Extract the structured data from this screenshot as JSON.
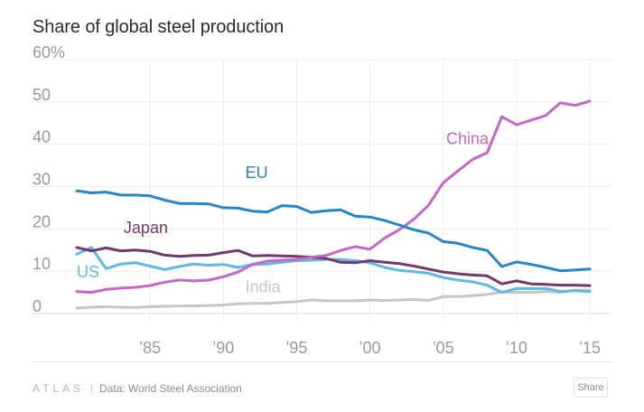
{
  "title": "Share of global steel production",
  "footer": {
    "logo": "ATLAS",
    "divider": "|",
    "source": "Data: World Steel Association",
    "share_label": "Share"
  },
  "chart_data": {
    "type": "line",
    "title": "Share of global steel production",
    "xlabel": "",
    "ylabel": "",
    "ylim": [
      0,
      60
    ],
    "xlim": [
      1980,
      2015
    ],
    "y_ticks": [
      {
        "value": 0,
        "label": "0"
      },
      {
        "value": 10,
        "label": "10"
      },
      {
        "value": 20,
        "label": "20"
      },
      {
        "value": 30,
        "label": "30"
      },
      {
        "value": 40,
        "label": "40"
      },
      {
        "value": 50,
        "label": "50"
      },
      {
        "value": 60,
        "label": "60%"
      }
    ],
    "x_ticks": [
      {
        "value": 1985,
        "label": "’85"
      },
      {
        "value": 1990,
        "label": "’90"
      },
      {
        "value": 1995,
        "label": "’95"
      },
      {
        "value": 2000,
        "label": "’00"
      },
      {
        "value": 2005,
        "label": "’05"
      },
      {
        "value": 2010,
        "label": "’10"
      },
      {
        "value": 2015,
        "label": "’15"
      }
    ],
    "grid": true,
    "x": [
      1980,
      1981,
      1982,
      1983,
      1984,
      1985,
      1986,
      1987,
      1988,
      1989,
      1990,
      1991,
      1992,
      1993,
      1994,
      1995,
      1996,
      1997,
      1998,
      1999,
      2000,
      2001,
      2002,
      2003,
      2004,
      2005,
      2006,
      2007,
      2008,
      2009,
      2010,
      2011,
      2012,
      2013,
      2014,
      2015
    ],
    "series": [
      {
        "name": "EU",
        "color": "#2587c7",
        "label_pos": [
          1991.5,
          32
        ],
        "values": [
          29.0,
          28.5,
          28.7,
          28.0,
          28.0,
          27.8,
          26.8,
          26.0,
          26.0,
          25.9,
          25.0,
          24.9,
          24.2,
          24.0,
          25.5,
          25.3,
          23.9,
          24.3,
          24.5,
          23.0,
          22.8,
          22.0,
          20.9,
          19.8,
          19.0,
          17.0,
          16.6,
          15.6,
          14.9,
          11.1,
          12.2,
          11.6,
          10.9,
          10.1,
          10.3,
          10.5
        ]
      },
      {
        "name": "China",
        "color": "#c667c7",
        "label_pos": [
          2005.2,
          40
        ],
        "values": [
          5.2,
          5.0,
          5.7,
          6.0,
          6.2,
          6.6,
          7.4,
          7.9,
          7.7,
          7.9,
          8.7,
          9.8,
          11.6,
          12.4,
          12.6,
          12.8,
          13.3,
          13.7,
          14.9,
          15.8,
          15.2,
          17.8,
          19.8,
          22.3,
          25.6,
          30.9,
          33.7,
          36.4,
          38.0,
          46.5,
          44.6,
          45.7,
          46.8,
          49.8,
          49.2,
          50.2
        ]
      },
      {
        "name": "Japan",
        "color": "#703a6b",
        "label_pos": [
          1983.2,
          19
        ],
        "values": [
          15.6,
          14.8,
          15.5,
          14.8,
          15.0,
          14.7,
          13.8,
          13.5,
          13.7,
          13.8,
          14.4,
          14.9,
          13.6,
          13.7,
          13.6,
          13.5,
          13.3,
          13.0,
          12.1,
          12.0,
          12.5,
          12.1,
          11.8,
          11.2,
          10.5,
          9.8,
          9.4,
          9.1,
          8.9,
          7.0,
          7.7,
          7.0,
          6.9,
          6.7,
          6.7,
          6.6
        ]
      },
      {
        "name": "US",
        "color": "#5fb9e3",
        "label_pos": [
          1980.0,
          8.5
        ],
        "values": [
          14.0,
          15.6,
          10.6,
          11.7,
          12.0,
          11.2,
          10.4,
          11.1,
          11.7,
          11.4,
          11.6,
          10.9,
          11.6,
          11.7,
          12.1,
          12.5,
          12.6,
          12.8,
          12.8,
          12.5,
          12.0,
          10.9,
          10.2,
          9.9,
          9.5,
          8.5,
          7.9,
          7.5,
          6.7,
          5.0,
          5.9,
          5.9,
          5.9,
          5.2,
          5.4,
          5.2
        ]
      },
      {
        "name": "India",
        "color": "#c6c6c6",
        "label_pos": [
          1991.5,
          5
        ],
        "values": [
          1.3,
          1.5,
          1.6,
          1.5,
          1.4,
          1.6,
          1.7,
          1.8,
          1.8,
          1.9,
          2.0,
          2.3,
          2.4,
          2.4,
          2.6,
          2.8,
          3.2,
          3.0,
          3.0,
          3.0,
          3.2,
          3.1,
          3.2,
          3.3,
          3.1,
          4.0,
          4.0,
          4.2,
          4.5,
          5.1,
          5.0,
          5.0,
          5.2,
          5.0,
          5.5,
          5.5
        ]
      }
    ]
  }
}
